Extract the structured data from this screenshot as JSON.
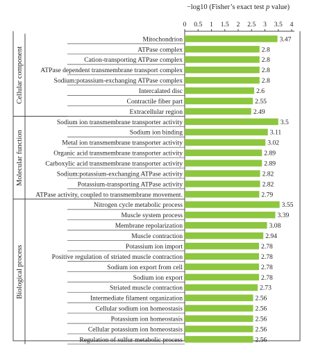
{
  "chart_data": {
    "type": "bar",
    "orientation": "horizontal",
    "xlabel_prefix": "−log10 (Fisher’s exact test ",
    "xlabel_italic": "p",
    "xlabel_suffix": " value)",
    "xlim": [
      0,
      4
    ],
    "xticks": [
      "0",
      "0.5",
      "1",
      "1.5",
      "2",
      "2.5",
      "3",
      "3.5",
      "4"
    ],
    "bar_color": "#8dc63f",
    "groups": [
      {
        "name": "Cellular component",
        "items": [
          {
            "label": "Mitochondrion",
            "value": 3.47,
            "value_text": "3.47"
          },
          {
            "label": "ATPase complex",
            "value": 2.8,
            "value_text": "2.8"
          },
          {
            "label": "Cation-transporting ATPase complex",
            "value": 2.8,
            "value_text": "2.8"
          },
          {
            "label": "ATPase dependent transmembrane transport complex",
            "value": 2.8,
            "value_text": "2.8"
          },
          {
            "label": "Sodium:potassium-exchanging ATPase complex",
            "value": 2.8,
            "value_text": "2.8"
          },
          {
            "label": "Intercalated disc",
            "value": 2.6,
            "value_text": "2.6"
          },
          {
            "label": "Contractile fiber part",
            "value": 2.55,
            "value_text": "2.55"
          },
          {
            "label": "Extracellular region",
            "value": 2.49,
            "value_text": "2.49"
          }
        ]
      },
      {
        "name": "Molecular function",
        "items": [
          {
            "label": "Sodium ion transmembrane transporter activity",
            "value": 3.5,
            "value_text": "3.5"
          },
          {
            "label": "Sodium ion binding",
            "value": 3.11,
            "value_text": "3.11"
          },
          {
            "label": "Metal ion transmembrane transporter activity",
            "value": 3.02,
            "value_text": "3.02"
          },
          {
            "label": "Organic acid transmembrane transporter activity",
            "value": 2.89,
            "value_text": "2.89"
          },
          {
            "label": "Carboxylic acid transmembrane transporter activity",
            "value": 2.89,
            "value_text": "2.89"
          },
          {
            "label": "Sodium:potassium-exchanging ATPase activity",
            "value": 2.82,
            "value_text": "2.82"
          },
          {
            "label": "Potassium-transporting ATPase activity",
            "value": 2.82,
            "value_text": "2.82"
          },
          {
            "label": "ATPase activity, coupled to transmembrane movement.",
            "value": 2.79,
            "value_text": "2.79"
          }
        ]
      },
      {
        "name": "Biological process",
        "items": [
          {
            "label": "Nitrogen cycle metabolic process",
            "value": 3.55,
            "value_text": "3.55"
          },
          {
            "label": "Muscle system process",
            "value": 3.39,
            "value_text": "3.39"
          },
          {
            "label": "Membrane repolarization",
            "value": 3.08,
            "value_text": "3.08"
          },
          {
            "label": "Muscle contraction",
            "value": 2.94,
            "value_text": "2.94"
          },
          {
            "label": "Potassium ion import",
            "value": 2.78,
            "value_text": "2.78"
          },
          {
            "label": "Positive regulation of striated muscle contraction",
            "value": 2.78,
            "value_text": "2.78"
          },
          {
            "label": "Sodium ion export from cell",
            "value": 2.78,
            "value_text": "2.78"
          },
          {
            "label": "Sodium ion export",
            "value": 2.78,
            "value_text": "2.78"
          },
          {
            "label": "Striated muscle contraction",
            "value": 2.73,
            "value_text": "2.73"
          },
          {
            "label": "Intermediate filament organization",
            "value": 2.56,
            "value_text": "2.56"
          },
          {
            "label": "Cellular sodium ion homeostasis",
            "value": 2.56,
            "value_text": "2.56"
          },
          {
            "label": "Potassium ion homeostasis",
            "value": 2.56,
            "value_text": "2.56"
          },
          {
            "label": "Cellular potassium ion homeostasis",
            "value": 2.56,
            "value_text": "2.56"
          },
          {
            "label": "Regulation of sulfur metabolic process",
            "value": 2.56,
            "value_text": "2.56"
          }
        ]
      }
    ],
    "grid": false,
    "legend": "none"
  }
}
